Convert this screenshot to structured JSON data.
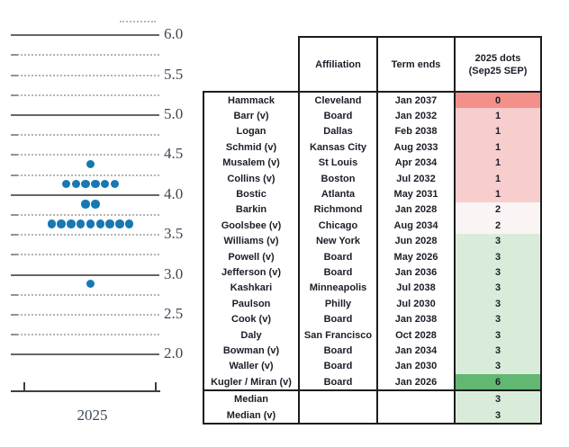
{
  "chart_data": {
    "type": "scatter",
    "title": "",
    "xlabel": "2025",
    "ylabel": "",
    "ylim": [
      2.0,
      6.0
    ],
    "grid_step": 0.25,
    "label_step": 0.5,
    "ytick_labels": [
      "6.0",
      "5.5",
      "5.0",
      "4.5",
      "4.0",
      "3.5",
      "3.0",
      "2.5",
      "2.0"
    ],
    "solid_lines": [
      6.0,
      5.0,
      4.0,
      3.0,
      2.0
    ],
    "dot_color": "#1778b2",
    "series": [
      {
        "name": "2025 dots (Sep25 SEP)",
        "points": [
          {
            "rate": 4.375,
            "count": 1
          },
          {
            "rate": 4.125,
            "count": 6
          },
          {
            "rate": 3.875,
            "count": 2
          },
          {
            "rate": 3.625,
            "count": 9
          },
          {
            "rate": 2.875,
            "count": 1
          }
        ]
      }
    ]
  },
  "table": {
    "headers": {
      "affiliation": "Affiliation",
      "term_ends": "Term ends",
      "dots_line1": "2025 dots",
      "dots_line2": "(Sep25 SEP)"
    },
    "rows": [
      {
        "name": "Hammack",
        "affiliation": "Cleveland",
        "term_ends": "Jan 2037",
        "dots": "0"
      },
      {
        "name": "Barr (v)",
        "affiliation": "Board",
        "term_ends": "Jan 2032",
        "dots": "1"
      },
      {
        "name": "Logan",
        "affiliation": "Dallas",
        "term_ends": "Feb 2038",
        "dots": "1"
      },
      {
        "name": "Schmid (v)",
        "affiliation": "Kansas City",
        "term_ends": "Aug 2033",
        "dots": "1"
      },
      {
        "name": "Musalem (v)",
        "affiliation": "St Louis",
        "term_ends": "Apr 2034",
        "dots": "1"
      },
      {
        "name": "Collins (v)",
        "affiliation": "Boston",
        "term_ends": "Jul 2032",
        "dots": "1"
      },
      {
        "name": "Bostic",
        "affiliation": "Atlanta",
        "term_ends": "May 2031",
        "dots": "1"
      },
      {
        "name": "Barkin",
        "affiliation": "Richmond",
        "term_ends": "Jan 2028",
        "dots": "2"
      },
      {
        "name": "Goolsbee (v)",
        "affiliation": "Chicago",
        "term_ends": "Aug 2034",
        "dots": "2"
      },
      {
        "name": "Williams (v)",
        "affiliation": "New York",
        "term_ends": "Jun 2028",
        "dots": "3"
      },
      {
        "name": "Powell (v)",
        "affiliation": "Board",
        "term_ends": "May 2026",
        "dots": "3"
      },
      {
        "name": "Jefferson (v)",
        "affiliation": "Board",
        "term_ends": "Jan 2036",
        "dots": "3"
      },
      {
        "name": "Kashkari",
        "affiliation": "Minneapolis",
        "term_ends": "Jul 2038",
        "dots": "3"
      },
      {
        "name": "Paulson",
        "affiliation": "Philly",
        "term_ends": "Jul 2030",
        "dots": "3"
      },
      {
        "name": "Cook (v)",
        "affiliation": "Board",
        "term_ends": "Jan 2038",
        "dots": "3"
      },
      {
        "name": "Daly",
        "affiliation": "San Francisco",
        "term_ends": "Oct 2028",
        "dots": "3"
      },
      {
        "name": "Bowman (v)",
        "affiliation": "Board",
        "term_ends": "Jan 2034",
        "dots": "3"
      },
      {
        "name": "Waller (v)",
        "affiliation": "Board",
        "term_ends": "Jan 2030",
        "dots": "3"
      },
      {
        "name": "Kugler / Miran (v)",
        "affiliation": "Board",
        "term_ends": "Jan 2026",
        "dots": "6"
      }
    ],
    "summary_rows": [
      {
        "name": "Median",
        "affiliation": "",
        "term_ends": "",
        "dots": "3"
      },
      {
        "name": "Median (v)",
        "affiliation": "",
        "term_ends": "",
        "dots": "3"
      }
    ],
    "dot_cell_colors": {
      "0": "#f29089",
      "1": "#f8cdcd",
      "2": "#fbf4f4",
      "3": "#d9ecd9",
      "6": "#62b873"
    }
  }
}
